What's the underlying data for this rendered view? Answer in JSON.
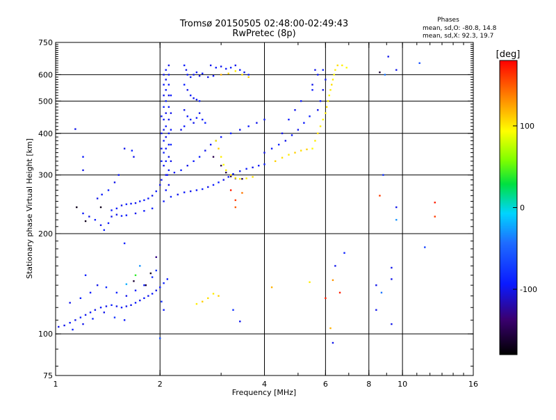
{
  "header": {
    "title": "Tromsø 20150505 02:48:00-02:49:43",
    "subtitle": "RwPretec (8p)",
    "stats_title": "Phases",
    "stats_o": "mean, sd,O: -80.8, 14.8",
    "stats_x": "mean, sd,X:  92.3, 19.7"
  },
  "colorbar": {
    "unit_label": "[deg]",
    "ticks": [
      {
        "value": 100,
        "label": "100"
      },
      {
        "value": 0,
        "label": "0"
      },
      {
        "value": -100,
        "label": "-100"
      }
    ],
    "range": [
      -180,
      180
    ]
  },
  "chart_data": {
    "type": "scatter",
    "title": "Tromsø 20150505 02:48:00-02:49:43",
    "subtitle": "RwPretec (8p)",
    "xlabel": "Frequency [MHz]",
    "ylabel": "Stationary phase Virtual Height [km]",
    "x_scale": "log",
    "y_scale": "log",
    "xlim": [
      1,
      16
    ],
    "ylim": [
      75,
      750
    ],
    "x_ticks": [
      {
        "value": 1,
        "label": "1"
      },
      {
        "value": 2,
        "label": "2"
      },
      {
        "value": 4,
        "label": "4"
      },
      {
        "value": 6,
        "label": "6"
      },
      {
        "value": 8,
        "label": "8"
      },
      {
        "value": 10,
        "label": "10"
      },
      {
        "value": 16,
        "label": "16"
      }
    ],
    "x_gridlines": [
      2,
      4,
      6,
      8,
      10
    ],
    "y_ticks": [
      {
        "value": 75,
        "label": "75"
      },
      {
        "value": 100,
        "label": "100"
      },
      {
        "value": 200,
        "label": "200"
      },
      {
        "value": 300,
        "label": "300"
      },
      {
        "value": 400,
        "label": "400"
      },
      {
        "value": 500,
        "label": "500"
      },
      {
        "value": 600,
        "label": "600"
      },
      {
        "value": 750,
        "label": "750"
      }
    ],
    "y_gridlines": [
      100,
      200,
      300,
      400,
      500,
      600
    ],
    "color_var": "phase [deg]",
    "points": [
      [
        1.02,
        105,
        -100
      ],
      [
        1.06,
        106,
        -100
      ],
      [
        1.1,
        108,
        -95
      ],
      [
        1.14,
        110,
        -100
      ],
      [
        1.18,
        112,
        -90
      ],
      [
        1.22,
        114,
        -100
      ],
      [
        1.26,
        116,
        -95
      ],
      [
        1.3,
        118,
        -100
      ],
      [
        1.35,
        120,
        -95
      ],
      [
        1.4,
        121,
        -100
      ],
      [
        1.45,
        122,
        -90
      ],
      [
        1.5,
        121,
        -100
      ],
      [
        1.55,
        120,
        -95
      ],
      [
        1.6,
        121,
        -100
      ],
      [
        1.65,
        122,
        -100
      ],
      [
        1.7,
        124,
        -95
      ],
      [
        1.75,
        126,
        -100
      ],
      [
        1.8,
        128,
        -95
      ],
      [
        1.85,
        130,
        -100
      ],
      [
        1.9,
        132,
        -95
      ],
      [
        1.95,
        135,
        -100
      ],
      [
        2.0,
        138,
        -95
      ],
      [
        2.05,
        142,
        -90
      ],
      [
        2.1,
        146,
        -95
      ],
      [
        1.12,
        103,
        -90
      ],
      [
        1.2,
        107,
        -100
      ],
      [
        1.28,
        111,
        -85
      ],
      [
        1.38,
        116,
        -100
      ],
      [
        1.48,
        112,
        -80
      ],
      [
        1.58,
        110,
        -95
      ],
      [
        1.1,
        124,
        -100
      ],
      [
        1.18,
        128,
        -90
      ],
      [
        1.26,
        133,
        -95
      ],
      [
        1.32,
        140,
        -100
      ],
      [
        1.22,
        150,
        -90
      ],
      [
        1.4,
        138,
        -85
      ],
      [
        1.5,
        133,
        -90
      ],
      [
        1.6,
        130,
        -100
      ],
      [
        1.7,
        135,
        -95
      ],
      [
        1.8,
        140,
        -90
      ],
      [
        1.9,
        148,
        -85
      ],
      [
        1.95,
        155,
        -80
      ],
      [
        2.02,
        125,
        -85
      ],
      [
        2.05,
        118,
        -95
      ],
      [
        1.68,
        144,
        -160
      ],
      [
        1.82,
        140,
        -160
      ],
      [
        1.88,
        152,
        -170
      ],
      [
        1.6,
        141,
        -20
      ],
      [
        1.7,
        150,
        40
      ],
      [
        1.75,
        160,
        -30
      ],
      [
        1.95,
        170,
        -130
      ],
      [
        1.2,
        230,
        -95
      ],
      [
        1.25,
        225,
        -100
      ],
      [
        1.3,
        220,
        -95
      ],
      [
        1.35,
        212,
        -100
      ],
      [
        1.38,
        205,
        -90
      ],
      [
        1.42,
        215,
        -95
      ],
      [
        1.45,
        225,
        -100
      ],
      [
        1.5,
        238,
        -95
      ],
      [
        1.55,
        243,
        -100
      ],
      [
        1.6,
        245,
        -90
      ],
      [
        1.65,
        246,
        -95
      ],
      [
        1.7,
        247,
        -100
      ],
      [
        1.75,
        250,
        -95
      ],
      [
        1.8,
        252,
        -90
      ],
      [
        1.85,
        255,
        -95
      ],
      [
        1.9,
        260,
        -100
      ],
      [
        1.95,
        268,
        -95
      ],
      [
        2.0,
        280,
        -100
      ],
      [
        1.45,
        235,
        -95
      ],
      [
        1.5,
        228,
        -100
      ],
      [
        1.55,
        226,
        -90
      ],
      [
        1.6,
        227,
        -95
      ],
      [
        1.7,
        230,
        -100
      ],
      [
        1.8,
        234,
        -95
      ],
      [
        1.9,
        238,
        -90
      ],
      [
        1.32,
        255,
        -100
      ],
      [
        1.36,
        262,
        -95
      ],
      [
        1.42,
        270,
        -90
      ],
      [
        1.48,
        285,
        -100
      ],
      [
        1.52,
        300,
        -95
      ],
      [
        1.15,
        240,
        -170
      ],
      [
        1.22,
        218,
        -170
      ],
      [
        1.35,
        240,
        -170
      ],
      [
        1.2,
        310,
        -100
      ],
      [
        1.2,
        340,
        -95
      ],
      [
        1.58,
        360,
        -100
      ],
      [
        1.66,
        355,
        -90
      ],
      [
        1.68,
        340,
        -100
      ],
      [
        1.14,
        412,
        -100
      ],
      [
        2.05,
        250,
        -95
      ],
      [
        2.15,
        258,
        -90
      ],
      [
        2.25,
        262,
        -100
      ],
      [
        2.35,
        266,
        -95
      ],
      [
        2.45,
        268,
        -100
      ],
      [
        2.55,
        270,
        -95
      ],
      [
        2.65,
        272,
        -90
      ],
      [
        2.75,
        276,
        -100
      ],
      [
        2.85,
        280,
        -95
      ],
      [
        2.95,
        285,
        -90
      ],
      [
        3.05,
        290,
        -100
      ],
      [
        3.15,
        296,
        -95
      ],
      [
        3.25,
        302,
        -90
      ],
      [
        3.4,
        308,
        -100
      ],
      [
        3.55,
        313,
        -95
      ],
      [
        3.7,
        316,
        -100
      ],
      [
        3.85,
        320,
        -95
      ],
      [
        4.0,
        323,
        -90
      ],
      [
        2.1,
        300,
        -100
      ],
      [
        2.2,
        305,
        -95
      ],
      [
        2.3,
        310,
        -90
      ],
      [
        2.4,
        320,
        -100
      ],
      [
        2.5,
        330,
        -95
      ],
      [
        2.6,
        340,
        -90
      ],
      [
        2.7,
        355,
        -100
      ],
      [
        2.8,
        370,
        -95
      ],
      [
        2.9,
        380,
        -100
      ],
      [
        3.0,
        390,
        -95
      ],
      [
        3.2,
        400,
        -90
      ],
      [
        3.4,
        410,
        -100
      ],
      [
        3.6,
        420,
        -95
      ],
      [
        3.8,
        430,
        -100
      ],
      [
        4.0,
        440,
        -95
      ],
      [
        2.85,
        340,
        -150
      ],
      [
        3.0,
        320,
        -150
      ],
      [
        3.1,
        305,
        -155
      ],
      [
        3.2,
        297,
        -150
      ],
      [
        3.3,
        293,
        -145
      ],
      [
        3.45,
        292,
        -150
      ],
      [
        2.9,
        380,
        100
      ],
      [
        2.95,
        360,
        110
      ],
      [
        3.0,
        340,
        100
      ],
      [
        3.05,
        322,
        95
      ],
      [
        3.1,
        310,
        100
      ],
      [
        3.2,
        300,
        105
      ],
      [
        3.3,
        294,
        100
      ],
      [
        3.4,
        292,
        95
      ],
      [
        3.55,
        293,
        100
      ],
      [
        3.7,
        296,
        105
      ],
      [
        3.2,
        270,
        170
      ],
      [
        3.3,
        252,
        160
      ],
      [
        3.3,
        240,
        150
      ],
      [
        3.45,
        265,
        140
      ],
      [
        2.05,
        600,
        -100
      ],
      [
        2.05,
        560,
        -95
      ],
      [
        2.05,
        520,
        -100
      ],
      [
        2.05,
        480,
        -90
      ],
      [
        2.05,
        440,
        -95
      ],
      [
        2.05,
        410,
        -100
      ],
      [
        2.05,
        380,
        -95
      ],
      [
        2.05,
        350,
        -90
      ],
      [
        2.05,
        320,
        -100
      ],
      [
        2.08,
        620,
        -95
      ],
      [
        2.08,
        580,
        -100
      ],
      [
        2.08,
        540,
        -95
      ],
      [
        2.08,
        500,
        -90
      ],
      [
        2.08,
        460,
        -100
      ],
      [
        2.08,
        420,
        -95
      ],
      [
        2.08,
        390,
        -100
      ],
      [
        2.08,
        360,
        -95
      ],
      [
        2.08,
        330,
        -90
      ],
      [
        2.08,
        300,
        -100
      ],
      [
        2.08,
        270,
        -95
      ],
      [
        2.12,
        640,
        -100
      ],
      [
        2.12,
        600,
        -95
      ],
      [
        2.12,
        560,
        -90
      ],
      [
        2.12,
        520,
        -100
      ],
      [
        2.12,
        480,
        -95
      ],
      [
        2.12,
        440,
        -100
      ],
      [
        2.12,
        400,
        -95
      ],
      [
        2.12,
        370,
        -90
      ],
      [
        2.12,
        340,
        -100
      ],
      [
        2.12,
        310,
        -95
      ],
      [
        2.12,
        280,
        -100
      ],
      [
        2.02,
        450,
        -95
      ],
      [
        2.02,
        400,
        -100
      ],
      [
        2.02,
        360,
        -95
      ],
      [
        2.02,
        330,
        -90
      ],
      [
        2.02,
        290,
        -100
      ],
      [
        2.15,
        520,
        -95
      ],
      [
        2.15,
        460,
        -100
      ],
      [
        2.15,
        410,
        -95
      ],
      [
        2.15,
        370,
        -90
      ],
      [
        2.15,
        330,
        -100
      ],
      [
        2.35,
        640,
        -95
      ],
      [
        2.38,
        620,
        -100
      ],
      [
        2.4,
        600,
        -95
      ],
      [
        2.45,
        590,
        -90
      ],
      [
        2.5,
        600,
        -100
      ],
      [
        2.55,
        610,
        -95
      ],
      [
        2.6,
        595,
        -100
      ],
      [
        2.65,
        605,
        -95
      ],
      [
        2.35,
        560,
        -90
      ],
      [
        2.4,
        540,
        -100
      ],
      [
        2.45,
        520,
        -95
      ],
      [
        2.5,
        510,
        -100
      ],
      [
        2.55,
        505,
        -95
      ],
      [
        2.6,
        500,
        -90
      ],
      [
        2.35,
        470,
        -100
      ],
      [
        2.4,
        450,
        -95
      ],
      [
        2.45,
        440,
        -90
      ],
      [
        2.5,
        430,
        -100
      ],
      [
        2.55,
        445,
        -95
      ],
      [
        2.6,
        460,
        -100
      ],
      [
        2.65,
        440,
        -95
      ],
      [
        2.7,
        430,
        -90
      ],
      [
        2.3,
        410,
        -100
      ],
      [
        2.35,
        420,
        -95
      ],
      [
        2.8,
        640,
        -100
      ],
      [
        2.9,
        630,
        -95
      ],
      [
        3.0,
        635,
        -100
      ],
      [
        3.1,
        625,
        -95
      ],
      [
        3.2,
        630,
        -90
      ],
      [
        3.3,
        640,
        -100
      ],
      [
        3.4,
        620,
        -95
      ],
      [
        3.5,
        610,
        -100
      ],
      [
        3.6,
        600,
        -95
      ],
      [
        2.75,
        590,
        -100
      ],
      [
        2.85,
        595,
        -95
      ],
      [
        3.0,
        600,
        120
      ],
      [
        3.15,
        605,
        110
      ],
      [
        3.3,
        615,
        100
      ],
      [
        3.45,
        600,
        105
      ],
      [
        3.6,
        590,
        110
      ],
      [
        4.0,
        350,
        -100
      ],
      [
        4.2,
        360,
        -95
      ],
      [
        4.4,
        370,
        -90
      ],
      [
        4.6,
        380,
        -100
      ],
      [
        4.8,
        395,
        -95
      ],
      [
        5.0,
        410,
        -100
      ],
      [
        5.2,
        430,
        -95
      ],
      [
        5.4,
        450,
        -90
      ],
      [
        4.5,
        400,
        -100
      ],
      [
        4.7,
        440,
        -95
      ],
      [
        4.9,
        470,
        -100
      ],
      [
        5.1,
        500,
        -95
      ],
      [
        4.3,
        330,
        110
      ],
      [
        4.5,
        338,
        105
      ],
      [
        4.7,
        345,
        100
      ],
      [
        4.9,
        350,
        110
      ],
      [
        5.1,
        355,
        105
      ],
      [
        5.3,
        358,
        110
      ],
      [
        5.5,
        360,
        95
      ],
      [
        5.6,
        380,
        100
      ],
      [
        5.7,
        400,
        105
      ],
      [
        5.8,
        420,
        100
      ],
      [
        5.9,
        440,
        95
      ],
      [
        6.0,
        460,
        100
      ],
      [
        6.05,
        480,
        105
      ],
      [
        6.1,
        500,
        100
      ],
      [
        6.15,
        520,
        95
      ],
      [
        6.2,
        540,
        100
      ],
      [
        6.25,
        560,
        105
      ],
      [
        6.3,
        580,
        100
      ],
      [
        6.35,
        600,
        95
      ],
      [
        6.4,
        620,
        100
      ],
      [
        6.5,
        640,
        105
      ],
      [
        6.7,
        640,
        100
      ],
      [
        6.9,
        630,
        95
      ],
      [
        5.7,
        470,
        -100
      ],
      [
        5.8,
        500,
        -95
      ],
      [
        5.9,
        540,
        -100
      ],
      [
        6.0,
        580,
        -95
      ],
      [
        5.6,
        620,
        -100
      ],
      [
        5.7,
        600,
        -95
      ],
      [
        5.5,
        560,
        -100
      ],
      [
        5.5,
        540,
        -95
      ],
      [
        5.9,
        620,
        -90
      ],
      [
        2.65,
        125,
        110
      ],
      [
        2.75,
        128,
        105
      ],
      [
        2.85,
        132,
        100
      ],
      [
        2.55,
        123,
        100
      ],
      [
        2.95,
        130,
        110
      ],
      [
        3.25,
        118,
        -80
      ],
      [
        9.1,
        680,
        -100
      ],
      [
        9.6,
        620,
        -100
      ],
      [
        11.2,
        650,
        -60
      ],
      [
        8.6,
        610,
        -160
      ],
      [
        8.9,
        600,
        -40
      ],
      [
        8.8,
        300,
        -80
      ],
      [
        8.6,
        260,
        160
      ],
      [
        9.6,
        240,
        -100
      ],
      [
        9.6,
        220,
        -30
      ],
      [
        12.4,
        248,
        170
      ],
      [
        12.4,
        225,
        160
      ],
      [
        11.6,
        182,
        -70
      ],
      [
        9.3,
        158,
        -100
      ],
      [
        9.3,
        146,
        -100
      ],
      [
        8.4,
        140,
        -100
      ],
      [
        8.7,
        133,
        -40
      ],
      [
        8.4,
        118,
        -100
      ],
      [
        9.3,
        107,
        -100
      ],
      [
        6.8,
        175,
        -90
      ],
      [
        6.4,
        160,
        -100
      ],
      [
        6.3,
        145,
        130
      ],
      [
        6.6,
        133,
        170
      ],
      [
        6.0,
        128,
        170
      ],
      [
        5.4,
        143,
        100
      ],
      [
        6.2,
        104,
        120
      ],
      [
        6.3,
        94,
        -100
      ],
      [
        4.2,
        138,
        120
      ],
      [
        3.4,
        109,
        -100
      ],
      [
        2.0,
        97,
        -60
      ],
      [
        1.58,
        187,
        -90
      ]
    ]
  }
}
